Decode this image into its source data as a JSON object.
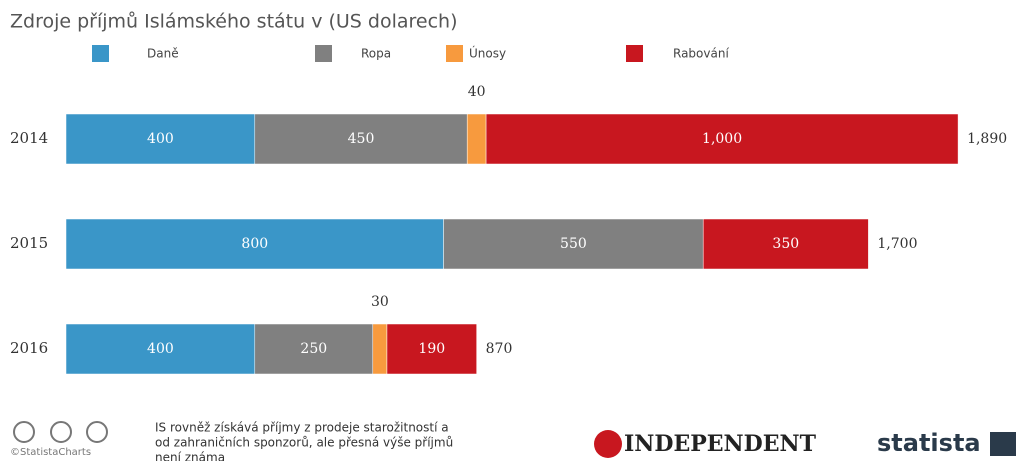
{
  "chart_data": {
    "type": "stacked-bar-horizontal",
    "title": "Zdroje příjmů Islámského státu v (US dolarech)",
    "categories": [
      "2014",
      "2015",
      "2016"
    ],
    "series": [
      {
        "name": "Daně",
        "color": "#3a96c8",
        "values": [
          400,
          800,
          400
        ]
      },
      {
        "name": "Ropa",
        "color": "#808080",
        "values": [
          450,
          550,
          250
        ]
      },
      {
        "name": "Únosy",
        "color": "#f79a3e",
        "values": [
          40,
          null,
          30
        ]
      },
      {
        "name": "Rabování",
        "color": "#c8171f",
        "values": [
          1000,
          350,
          190
        ],
        "value_labels": [
          "1,000",
          "350",
          "190"
        ]
      }
    ],
    "totals": {
      "values": [
        1890,
        1700,
        870
      ],
      "value_labels": [
        "1,890",
        "1,700",
        "870"
      ]
    }
  },
  "footer": {
    "credit": "©StatistaCharts",
    "note": [
      "IS rovněž získává příjmy z prodeje starožitností a",
      "od zahraničních sponzorů, ale přesná výše příjmů",
      "není známa"
    ],
    "publisher": "INDEPENDENT",
    "brand": "statista"
  }
}
